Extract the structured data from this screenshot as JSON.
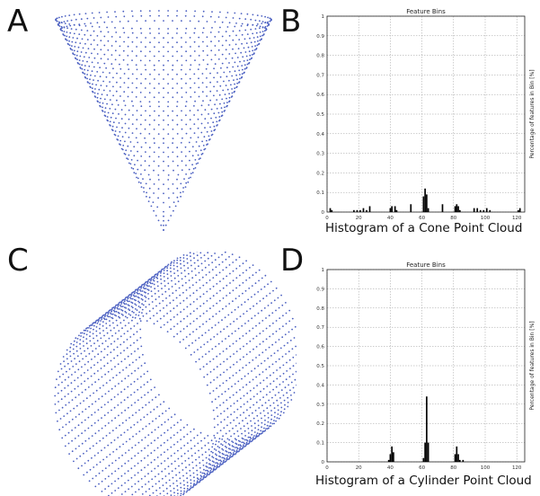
{
  "panels": {
    "a": {
      "letter": "A"
    },
    "b": {
      "letter": "B",
      "caption": "Histogram of a Cone Point Cloud"
    },
    "c": {
      "letter": "C"
    },
    "d": {
      "letter": "D",
      "caption": "Histogram of a Cylinder Point Cloud"
    }
  },
  "colors": {
    "points": "#4a5fc1",
    "bars": "#000000",
    "grid": "#9a9a9a"
  },
  "chart_data": [
    {
      "type": "bar",
      "title": "Feature Bins",
      "xlabel": "",
      "ylabel": "Percentage of features in Bin [%]",
      "xlim": [
        0,
        125
      ],
      "ylim": [
        0,
        1
      ],
      "xticks": [
        0,
        20,
        40,
        60,
        80,
        100,
        120
      ],
      "yticks": [
        0,
        0.1,
        0.2,
        0.3,
        0.4,
        0.5,
        0.6,
        0.7,
        0.8,
        0.9,
        1
      ],
      "grid": true,
      "x": [
        2,
        3,
        17,
        19,
        21,
        23,
        25,
        27,
        40,
        41,
        43,
        44,
        53,
        61,
        62,
        63,
        64,
        73,
        81,
        82,
        83,
        84,
        93,
        95,
        97,
        99,
        101,
        103,
        121,
        122
      ],
      "values": [
        0.02,
        0.01,
        0.01,
        0.01,
        0.01,
        0.02,
        0.01,
        0.03,
        0.02,
        0.03,
        0.03,
        0.01,
        0.04,
        0.08,
        0.12,
        0.09,
        0.02,
        0.04,
        0.03,
        0.04,
        0.03,
        0.01,
        0.02,
        0.02,
        0.01,
        0.01,
        0.02,
        0.01,
        0.01,
        0.02
      ]
    },
    {
      "type": "bar",
      "title": "Feature Bins",
      "xlabel": "",
      "ylabel": "Percentage of features in Bin [%]",
      "xlim": [
        0,
        125
      ],
      "ylim": [
        0,
        1
      ],
      "xticks": [
        0,
        20,
        40,
        60,
        80,
        100,
        120
      ],
      "yticks": [
        0,
        0.1,
        0.2,
        0.3,
        0.4,
        0.5,
        0.6,
        0.7,
        0.8,
        0.9,
        1
      ],
      "grid": true,
      "x": [
        39,
        40,
        41,
        42,
        61,
        62,
        63,
        64,
        81,
        82,
        83,
        84,
        86
      ],
      "values": [
        0.01,
        0.04,
        0.08,
        0.05,
        0.02,
        0.1,
        0.34,
        0.1,
        0.04,
        0.08,
        0.04,
        0.01,
        0.01
      ]
    }
  ]
}
